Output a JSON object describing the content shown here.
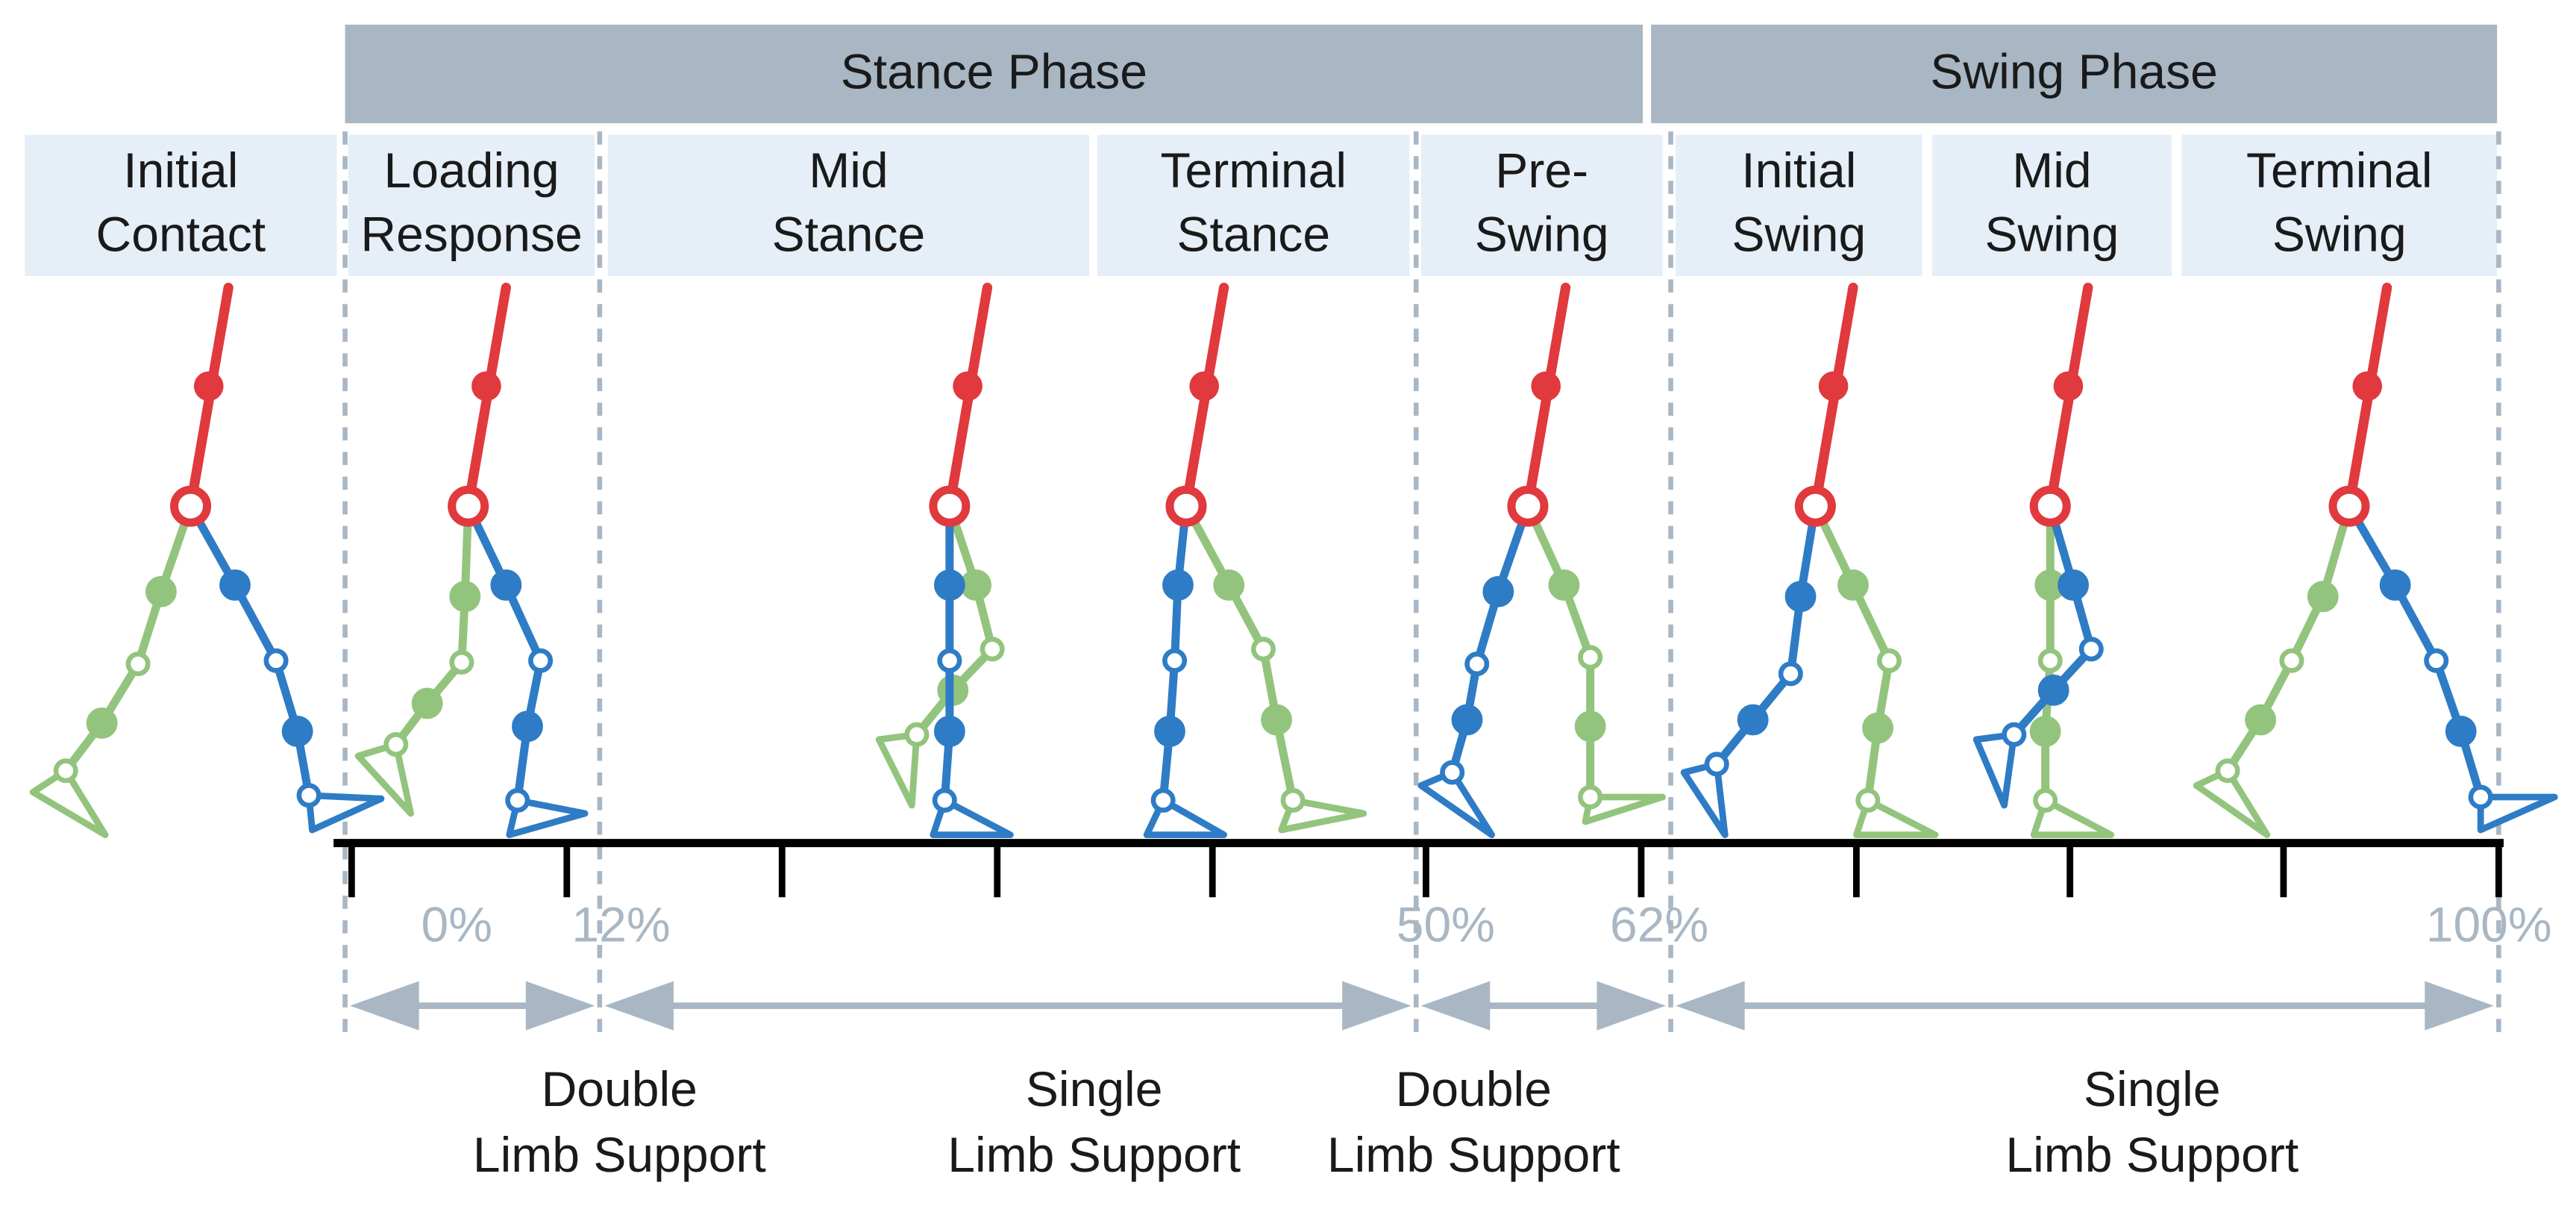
{
  "phases": [
    "Stance Phase",
    "Swing Phase"
  ],
  "subphases": [
    {
      "lines": [
        "Initial",
        "Contact"
      ]
    },
    {
      "lines": [
        "Loading",
        "Response"
      ]
    },
    {
      "lines": [
        "Mid",
        "Stance"
      ]
    },
    {
      "lines": [
        "Terminal",
        "Stance"
      ]
    },
    {
      "lines": [
        "Pre-",
        "Swing"
      ]
    },
    {
      "lines": [
        "Initial",
        "Swing"
      ]
    },
    {
      "lines": [
        "Mid",
        "Swing"
      ]
    },
    {
      "lines": [
        "Terminal",
        "Swing"
      ]
    }
  ],
  "percent_labels": [
    "0%",
    "12%",
    "50%",
    "62%",
    "100%"
  ],
  "support_periods": [
    {
      "lines": [
        "Double",
        "Limb Support"
      ]
    },
    {
      "lines": [
        "Single",
        "Limb Support"
      ]
    },
    {
      "lines": [
        "Double",
        "Limb Support"
      ]
    },
    {
      "lines": [
        "Single",
        "Limb Support"
      ]
    }
  ]
}
